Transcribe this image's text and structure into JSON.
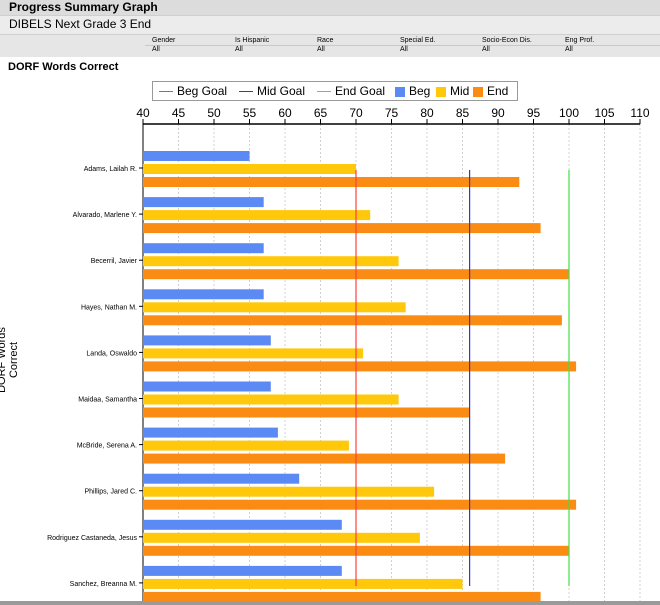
{
  "header": {
    "title": "Progress Summary Graph",
    "subtitle": "DIBELS Next Grade 3 End"
  },
  "filters": [
    {
      "label": "Gender",
      "value": "All"
    },
    {
      "label": "Is Hispanic",
      "value": "All"
    },
    {
      "label": "Race",
      "value": "All"
    },
    {
      "label": "Special Ed.",
      "value": "All"
    },
    {
      "label": "Socio-Econ Dis.",
      "value": "All"
    },
    {
      "label": "Eng Prof.",
      "value": "All"
    }
  ],
  "legend": {
    "beg_goal": "Beg Goal",
    "mid_goal": "Mid Goal",
    "end_goal": "End Goal",
    "beg": "Beg",
    "mid": "Mid",
    "end": "End"
  },
  "colors": {
    "beg": "#5b8af5",
    "mid": "#ffc80a",
    "end": "#fa8c14",
    "beg_goal": "#ff4040",
    "mid_goal": "#3333dd",
    "end_goal": "#44e044"
  },
  "chart_data": {
    "type": "bar",
    "orientation": "horizontal",
    "title": "DORF Words Correct",
    "ylabel": "DORF Words Correct",
    "xlim": [
      40,
      110
    ],
    "xticks": [
      40,
      45,
      50,
      55,
      60,
      65,
      70,
      75,
      80,
      85,
      90,
      95,
      100,
      105,
      110
    ],
    "grid": "vertical dashed",
    "legend_position": "top",
    "categories": [
      "Adams, Lailah R.",
      "Alvarado, Marlene Y.",
      "Becerril, Javier",
      "Hayes, Nathan M.",
      "Landa, Oswaldo",
      "Maidaa, Samantha",
      "McBride, Serena A.",
      "Phillips, Jared C.",
      "Rodriguez Castaneda, Jesus",
      "Sanchez, Breanna M."
    ],
    "series": [
      {
        "name": "Beg",
        "values": [
          55,
          57,
          57,
          57,
          58,
          58,
          59,
          62,
          68,
          68
        ]
      },
      {
        "name": "Mid",
        "values": [
          70,
          72,
          76,
          77,
          71,
          76,
          69,
          81,
          79,
          85
        ]
      },
      {
        "name": "End",
        "values": [
          93,
          96,
          100,
          99,
          101,
          86,
          91,
          101,
          100,
          96
        ]
      }
    ],
    "goals": [
      {
        "name": "Beg Goal",
        "value": 70
      },
      {
        "name": "Mid Goal",
        "value": 86
      },
      {
        "name": "End Goal",
        "value": 100
      }
    ]
  }
}
